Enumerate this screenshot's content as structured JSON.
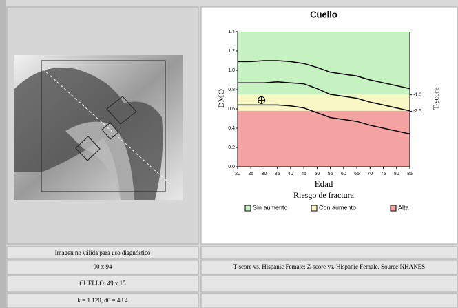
{
  "image_panel": {
    "caption": "Imagen no válida para uso diagnóstico",
    "size": "90 x 94",
    "roi": "CUELLO: 49 x 15",
    "params": "k = 1.120, d0 = 48.4"
  },
  "reference_note": "T-score vs. Hispanic Female; Z-score vs. Hispanic Female. Source:NHANES",
  "chart_data": {
    "type": "line",
    "title": "Cuello",
    "x_label": "Edad",
    "y_label": "DMO",
    "y2_label": "T-score",
    "x": [
      20,
      25,
      30,
      35,
      40,
      45,
      50,
      55,
      60,
      65,
      70,
      75,
      80,
      85
    ],
    "xlim": [
      20,
      85
    ],
    "xticks": [
      20,
      25,
      30,
      35,
      40,
      45,
      50,
      55,
      60,
      65,
      70,
      75,
      80,
      85
    ],
    "ylim": [
      0,
      1.4
    ],
    "yticks": [
      {
        "value": 0,
        "label": "0.0"
      },
      0.2,
      0.4,
      0.6,
      0.8,
      {
        "value": 1,
        "label": "1.0"
      },
      1.2,
      1.4
    ],
    "y2lim": [
      -7.6,
      4.8
    ],
    "y2ticks": [
      {
        "value": -1,
        "label": "-1.0"
      },
      {
        "value": -2.5,
        "label": "-2.5"
      }
    ],
    "series": [
      {
        "color": "#000000",
        "values": [
          1.09,
          1.09,
          1.1,
          1.1,
          1.09,
          1.07,
          1.03,
          0.98,
          0.96,
          0.94,
          0.9,
          0.87,
          0.84,
          0.81
        ]
      },
      {
        "color": "#000000",
        "values": [
          0.87,
          0.87,
          0.87,
          0.88,
          0.87,
          0.86,
          0.81,
          0.75,
          0.73,
          0.71,
          0.67,
          0.64,
          0.61,
          0.58
        ]
      },
      {
        "color": "#000000",
        "values": [
          0.64,
          0.64,
          0.64,
          0.64,
          0.63,
          0.61,
          0.56,
          0.51,
          0.49,
          0.47,
          0.43,
          0.4,
          0.37,
          0.34
        ]
      }
    ],
    "legend_title": "Riesgo de fractura",
    "zones": [
      {
        "name": "Sin aumento",
        "color": "#c6f2c2",
        "from": 0.75,
        "to": 1.4
      },
      {
        "name": "Con aumento",
        "color": "#f9f8c4",
        "from": 0.58,
        "to": 0.75
      },
      {
        "name": "Alta",
        "color": "#f4a3a3",
        "from": 0,
        "to": 0.58
      }
    ],
    "marker": {
      "x": 29,
      "y": 0.69
    }
  }
}
